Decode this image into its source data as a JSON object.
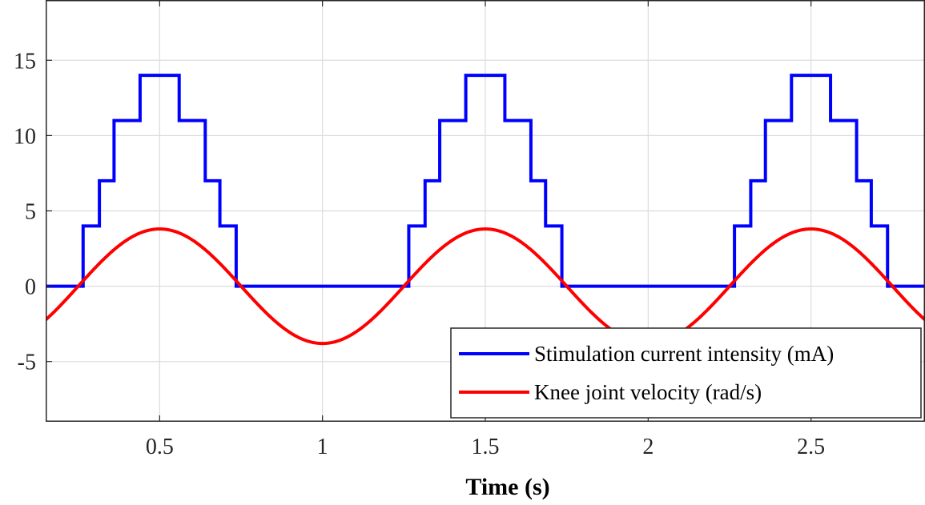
{
  "chart_data": {
    "type": "line",
    "xlabel": "Time (s)",
    "ylabel": "",
    "xlim": [
      0.15,
      2.85
    ],
    "ylim": [
      -9,
      19
    ],
    "xticks": [
      0.5,
      1,
      1.5,
      2,
      2.5
    ],
    "xtick_labels": [
      "0.5",
      "1",
      "1.5",
      "2",
      "2.5"
    ],
    "yticks": [
      -5,
      0,
      5,
      10,
      15
    ],
    "ytick_labels": [
      "-5",
      "0",
      "5",
      "10",
      "15"
    ],
    "grid": true,
    "legend_position": "bottom-right",
    "series": [
      {
        "name": "Stimulation current intensity (mA)",
        "color": "#0000ff",
        "step": true,
        "x": [
          0.15,
          0.265,
          0.265,
          0.315,
          0.315,
          0.36,
          0.36,
          0.44,
          0.44,
          0.56,
          0.56,
          0.64,
          0.64,
          0.685,
          0.685,
          0.735,
          0.735,
          1.265,
          1.265,
          1.315,
          1.315,
          1.36,
          1.36,
          1.44,
          1.44,
          1.56,
          1.56,
          1.64,
          1.64,
          1.685,
          1.685,
          1.735,
          1.735,
          2.265,
          2.265,
          2.315,
          2.315,
          2.36,
          2.36,
          2.44,
          2.44,
          2.56,
          2.56,
          2.64,
          2.64,
          2.685,
          2.685,
          2.735,
          2.735,
          2.85
        ],
        "y": [
          0,
          0,
          4,
          4,
          7,
          7,
          11,
          11,
          14,
          14,
          11,
          11,
          7,
          7,
          4,
          4,
          0,
          0,
          4,
          4,
          7,
          7,
          11,
          11,
          14,
          14,
          11,
          11,
          7,
          7,
          4,
          4,
          0,
          0,
          4,
          4,
          7,
          7,
          11,
          11,
          14,
          14,
          11,
          11,
          7,
          7,
          4,
          4,
          0,
          0
        ]
      },
      {
        "name": "Knee joint velocity (rad/s)",
        "color": "#ff0000",
        "function": "A*sin(2*pi*(t-0.25))",
        "amplitude": 3.8,
        "period": 1,
        "phase_zero": 0.25
      }
    ]
  }
}
